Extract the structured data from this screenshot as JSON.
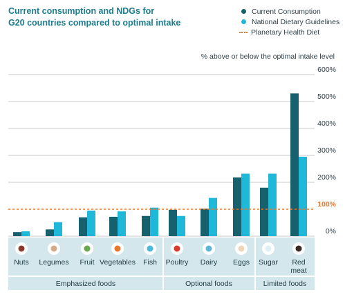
{
  "title_line1": "Current consumption and NDGs for",
  "title_line2": "G20 countries compared to optimal intake",
  "legend": {
    "current": "Current Consumption",
    "ndg": "National Dietary Guidelines",
    "phd": "Planetary Health Diet"
  },
  "subtitle": "% above or below the optimal intake level",
  "colors": {
    "current": "#17606e",
    "ndg": "#1fb8d9",
    "phd": "#e8772e",
    "band": "#d3e7ec",
    "grid": "#c9c9c9"
  },
  "groups": [
    {
      "label": "Emphasized foods"
    },
    {
      "label": "Optional foods"
    },
    {
      "label": "Limited foods"
    }
  ],
  "icons": [
    "nuts-icon",
    "legumes-icon",
    "fruit-icon",
    "vegetables-icon",
    "fish-icon",
    "poultry-icon",
    "dairy-icon",
    "eggs-icon",
    "sugar-icon",
    "red-meat-icon"
  ],
  "chart_data": {
    "type": "bar",
    "title": "Current consumption and NDGs for G20 countries compared to optimal intake",
    "ylabel": "% above or below the optimal intake level",
    "categories": [
      "Nuts",
      "Legumes",
      "Fruit",
      "Vegetables",
      "Fish",
      "Poultry",
      "Dairy",
      "Eggs",
      "Sugar",
      "Red meat"
    ],
    "category_lines": [
      [
        "Nuts"
      ],
      [
        "Legumes"
      ],
      [
        "Fruit"
      ],
      [
        "Vegetables"
      ],
      [
        "Fish"
      ],
      [
        "Poultry"
      ],
      [
        "Dairy"
      ],
      [
        "Eggs"
      ],
      [
        "Sugar"
      ],
      [
        "Red",
        "meat"
      ]
    ],
    "series": [
      {
        "name": "Current Consumption",
        "values": [
          15,
          25,
          70,
          72,
          75,
          98,
          102,
          218,
          180,
          530
        ]
      },
      {
        "name": "National Dietary Guidelines",
        "values": [
          18,
          52,
          95,
          92,
          106,
          75,
          142,
          232,
          232,
          295
        ]
      }
    ],
    "reference_line": {
      "name": "Planetary Health Diet",
      "value": 100,
      "label": "100%"
    },
    "yticks": [
      0,
      100,
      200,
      300,
      400,
      500,
      600
    ],
    "ytick_labels": [
      "0%",
      "100%",
      "200%",
      "300%",
      "400%",
      "500%",
      "600%"
    ],
    "ylim": [
      0,
      600
    ],
    "grid": true,
    "legend_position": "top-right"
  }
}
